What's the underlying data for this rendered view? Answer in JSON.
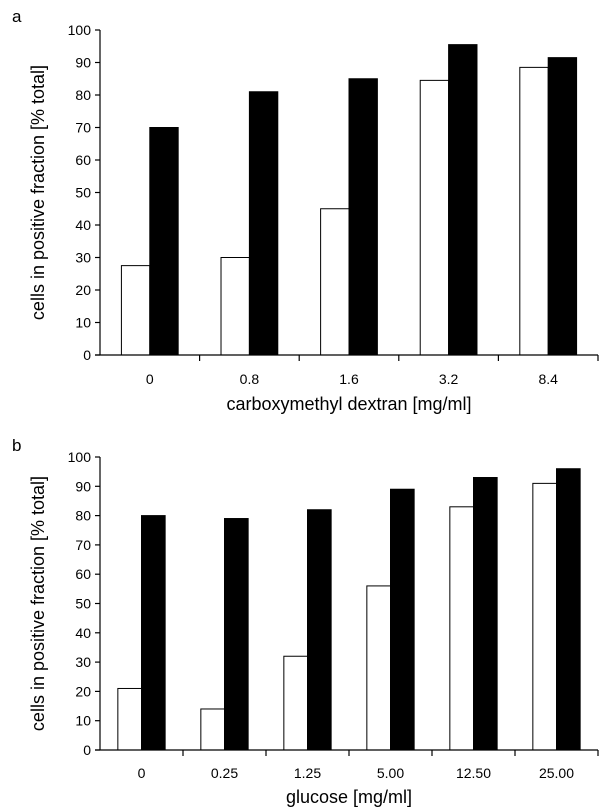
{
  "chart_data": [
    {
      "type": "bar",
      "panel_label": "a",
      "categories": [
        "0",
        "0.8",
        "1.6",
        "3.2",
        "8.4"
      ],
      "series": [
        {
          "fill": "#ffffff",
          "values": [
            27.5,
            30,
            45,
            84.5,
            88.5
          ]
        },
        {
          "fill": "#000000",
          "values": [
            70,
            81,
            85,
            95.5,
            91.5
          ]
        }
      ],
      "xlabel": "carboxymethyl dextran [mg/ml]",
      "ylabel": "cells in positive fraction [% total]",
      "ylim": [
        0,
        100
      ],
      "yticks": [
        "0",
        "10",
        "20",
        "30",
        "40",
        "50",
        "60",
        "70",
        "80",
        "90",
        "100"
      ],
      "grid": false,
      "legend": "none"
    },
    {
      "type": "bar",
      "panel_label": "b",
      "categories": [
        "0",
        "0.25",
        "1.25",
        "5.00",
        "12.50",
        "25.00"
      ],
      "series": [
        {
          "fill": "#ffffff",
          "values": [
            21,
            14,
            32,
            56,
            83,
            91
          ]
        },
        {
          "fill": "#000000",
          "values": [
            80,
            79,
            82,
            89,
            93,
            96
          ]
        }
      ],
      "xlabel": "glucose [mg/ml]",
      "ylabel": "cells in positive fraction [% total]",
      "ylim": [
        0,
        100
      ],
      "yticks": [
        "0",
        "10",
        "20",
        "30",
        "40",
        "50",
        "60",
        "70",
        "80",
        "90",
        "100"
      ],
      "grid": false,
      "legend": "none"
    }
  ]
}
